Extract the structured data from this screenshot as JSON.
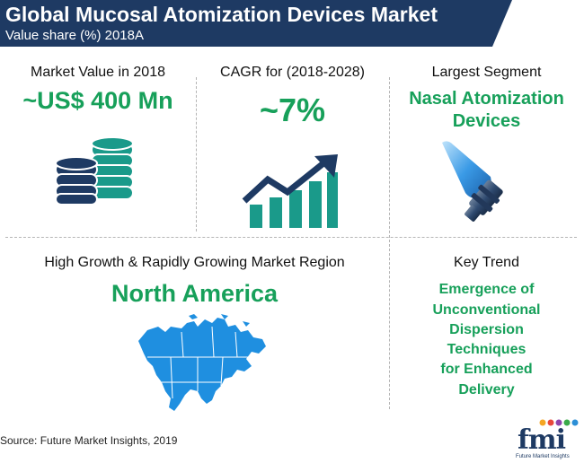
{
  "header": {
    "title": "Global Mucosal Atomization Devices Market",
    "subtitle": "Value share (%) 2018A"
  },
  "market_value": {
    "label": "Market Value in 2018",
    "value": "~US$ 400 Mn",
    "icon": "coins-stack-icon"
  },
  "cagr": {
    "label": "CAGR for (2018-2028)",
    "value": "~7%",
    "icon": "growth-chart-icon"
  },
  "largest_segment": {
    "label": "Largest Segment",
    "line1": "Nasal Atomization",
    "line2": "Devices",
    "icon": "nasal-atomizer-icon"
  },
  "region": {
    "label": "High Growth & Rapidly Growing Market Region",
    "value": "North America",
    "icon": "north-america-map-icon"
  },
  "key_trend": {
    "label": "Key Trend",
    "lines": [
      "Emergence of",
      "Unconventional",
      "Dispersion",
      "Techniques",
      "for Enhanced",
      "Delivery"
    ]
  },
  "source": "Source: Future Market Insights, 2019",
  "logo": {
    "text": "fmi",
    "tagline": "Future Market Insights"
  },
  "colors": {
    "navy": "#1e3a63",
    "green": "#17a05a",
    "teal": "#1a9a8a",
    "blue": "#2c8fd6"
  }
}
